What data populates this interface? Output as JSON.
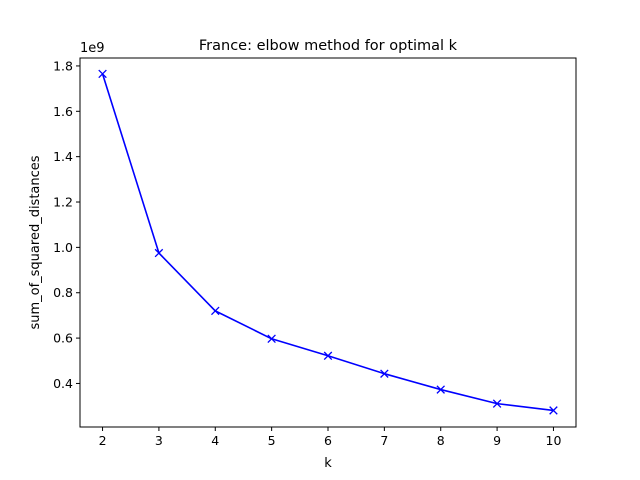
{
  "chart_data": {
    "type": "line",
    "title": "France: elbow method for optimal k",
    "xlabel": "k",
    "ylabel": "sum_of_squared_distances",
    "y_offset_label": "1e9",
    "xlim": [
      1.6,
      10.4
    ],
    "ylim": [
      0.208,
      1.835
    ],
    "xticks": [
      2,
      3,
      4,
      5,
      6,
      7,
      8,
      9,
      10
    ],
    "yticks": [
      0.4,
      0.6,
      0.8,
      1.0,
      1.2,
      1.4,
      1.6,
      1.8
    ],
    "ytick_labels": [
      "0.4",
      "0.6",
      "0.8",
      "1.0",
      "1.2",
      "1.4",
      "1.6",
      "1.8"
    ],
    "grid": false,
    "series": [
      {
        "color": "#0000ff",
        "marker": "x",
        "x": [
          2,
          3,
          4,
          5,
          6,
          7,
          8,
          9,
          10
        ],
        "y": [
          1.765,
          0.975,
          0.72,
          0.597,
          0.522,
          0.443,
          0.373,
          0.311,
          0.281
        ]
      }
    ]
  }
}
